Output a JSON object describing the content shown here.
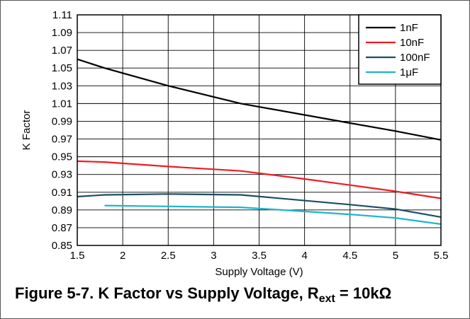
{
  "caption": {
    "main": "Figure 5-7. K Factor vs Supply Voltage, R",
    "sub": "ext",
    "tail": " = 10kΩ"
  },
  "colors": {
    "grid": "#000000",
    "1nF": "#000000",
    "10nF": "#ee1c25",
    "100nF": "#1a4f63",
    "1uF": "#1eb5cc"
  },
  "chart_data": {
    "type": "line",
    "title": "",
    "xlabel": "Supply Voltage (V)",
    "ylabel": "K Factor",
    "xlim": [
      1.5,
      5.5
    ],
    "ylim": [
      0.85,
      1.11
    ],
    "x_ticks": [
      "1.5",
      "2",
      "2.5",
      "3",
      "3.5",
      "4",
      "4.5",
      "5",
      "5.5"
    ],
    "y_ticks": [
      "0.85",
      "0.87",
      "0.89",
      "0.91",
      "0.93",
      "0.95",
      "0.97",
      "0.99",
      "1.01",
      "1.03",
      "1.05",
      "1.07",
      "1.09",
      "1.11"
    ],
    "x_tick_values": [
      1.5,
      2,
      2.5,
      3,
      3.5,
      4,
      4.5,
      5,
      5.5
    ],
    "y_tick_values": [
      0.85,
      0.87,
      0.89,
      0.91,
      0.93,
      0.95,
      0.97,
      0.99,
      1.01,
      1.03,
      1.05,
      1.07,
      1.09,
      1.11
    ],
    "grid": true,
    "legend_position": "top-right",
    "series": [
      {
        "name": "1nF",
        "color": "#000000",
        "x": [
          1.5,
          1.8,
          2.5,
          3.3,
          4.5,
          5.0,
          5.5
        ],
        "y": [
          1.06,
          1.05,
          1.03,
          1.01,
          0.988,
          0.979,
          0.969
        ]
      },
      {
        "name": "10nF",
        "color": "#ee1c25",
        "x": [
          1.5,
          1.8,
          2.5,
          3.3,
          4.0,
          4.5,
          5.0,
          5.5
        ],
        "y": [
          0.945,
          0.944,
          0.939,
          0.934,
          0.925,
          0.918,
          0.911,
          0.903
        ]
      },
      {
        "name": "100nF",
        "color": "#1a4f63",
        "x": [
          1.5,
          1.8,
          2.5,
          3.3,
          4.5,
          5.0,
          5.5
        ],
        "y": [
          0.905,
          0.907,
          0.908,
          0.907,
          0.896,
          0.891,
          0.882
        ]
      },
      {
        "name": "1μF",
        "color": "#1eb5cc",
        "x": [
          1.8,
          2.5,
          3.3,
          4.5,
          5.0,
          5.5
        ],
        "y": [
          0.895,
          0.894,
          0.893,
          0.885,
          0.881,
          0.874
        ]
      }
    ]
  }
}
